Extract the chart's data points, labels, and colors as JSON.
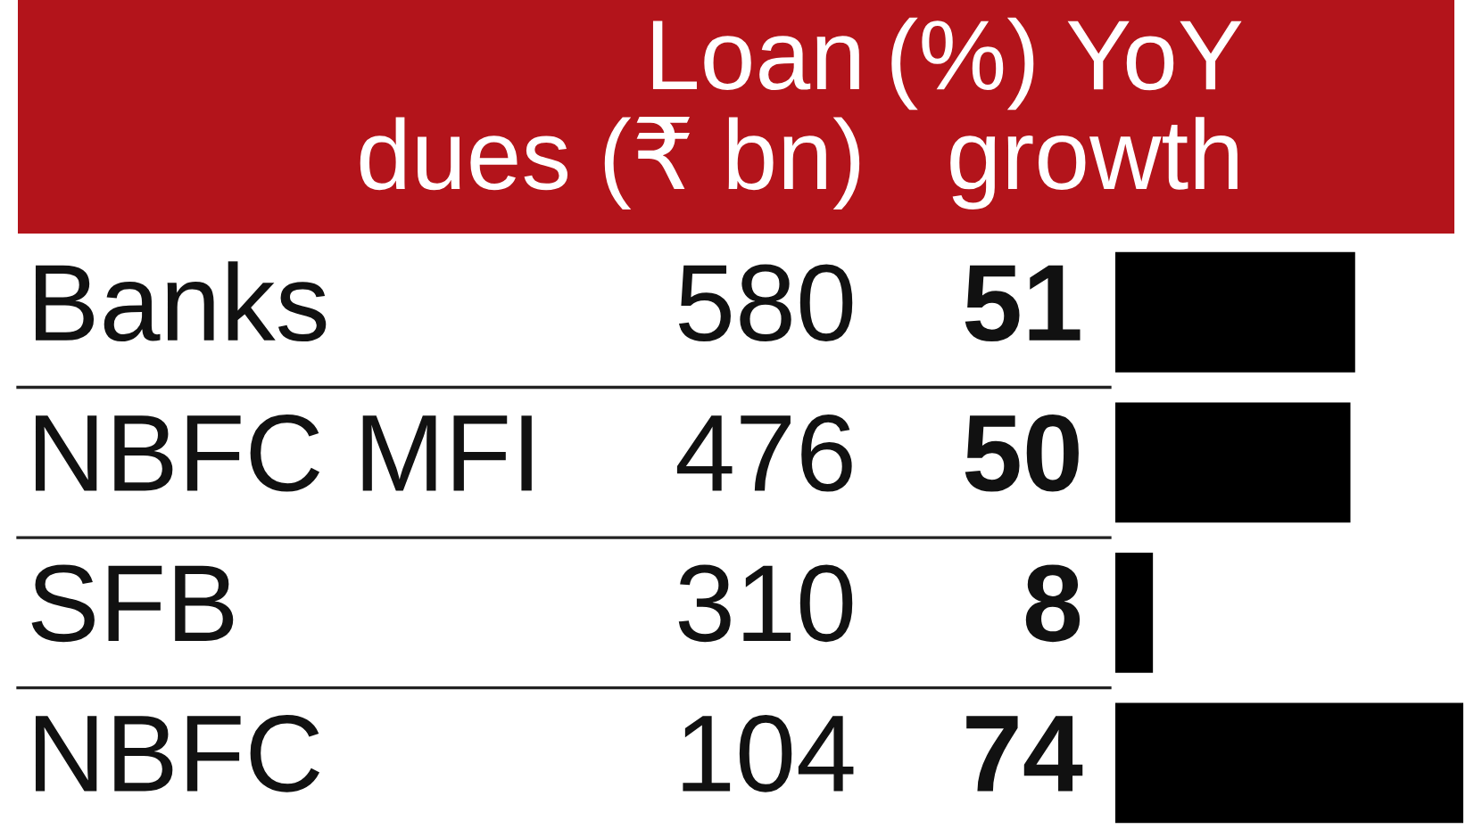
{
  "chart_data": [
    {
      "type": "other",
      "title": "Loan\ndues (₹ bn)",
      "categories": [
        "Banks",
        "NBFC MFI",
        "SFB",
        "NBFC"
      ],
      "values": [
        580,
        476,
        310,
        104
      ],
      "data_labels": true
    },
    {
      "type": "bar",
      "orientation": "horizontal",
      "title": "(%) YoY\ngrowth",
      "categories": [
        null,
        null,
        null,
        null
      ],
      "values": [
        51,
        50,
        8,
        74
      ],
      "color": "#000000",
      "data_labels": true
    }
  ]
}
